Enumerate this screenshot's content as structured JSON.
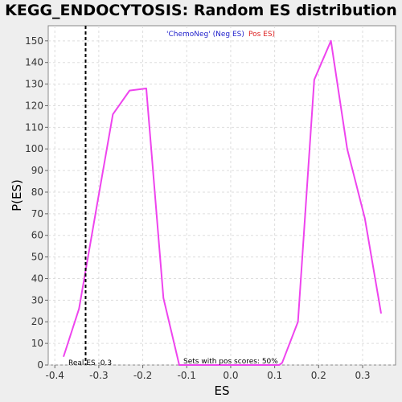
{
  "chart_data": {
    "type": "line",
    "title": "KEGG_ENDOCYTOSIS: Random ES distribution",
    "xlabel": "ES",
    "ylabel": "P(ES)",
    "xlim": [
      -0.415,
      0.375
    ],
    "ylim": [
      0,
      157
    ],
    "x_ticks": [
      -0.4,
      -0.3,
      -0.2,
      -0.1,
      0.0,
      0.1,
      0.2,
      0.3
    ],
    "y_ticks": [
      0,
      10,
      20,
      30,
      40,
      50,
      60,
      70,
      80,
      90,
      100,
      110,
      120,
      130,
      140,
      150
    ],
    "grid": true,
    "legend": {
      "neg": "'ChemoNeg' (Neg ES)",
      "pos": "Pos ES)"
    },
    "series": [
      {
        "color": "#ee44ee",
        "points": [
          [
            -0.38,
            4
          ],
          [
            -0.345,
            26
          ],
          [
            -0.305,
            73
          ],
          [
            -0.268,
            116
          ],
          [
            -0.23,
            127
          ],
          [
            -0.192,
            128
          ],
          [
            -0.153,
            31
          ],
          [
            -0.117,
            0
          ],
          [
            0.11,
            0
          ],
          [
            0.117,
            1
          ],
          [
            0.153,
            20
          ],
          [
            0.19,
            132
          ],
          [
            0.228,
            150
          ],
          [
            0.265,
            100
          ],
          [
            0.305,
            68
          ],
          [
            0.342,
            24
          ]
        ]
      }
    ],
    "annotations": {
      "real_es_value": -0.33,
      "real_es_label": "Real ES -0.3",
      "pos_scores_label": "Sets with pos scores: 50%"
    }
  }
}
